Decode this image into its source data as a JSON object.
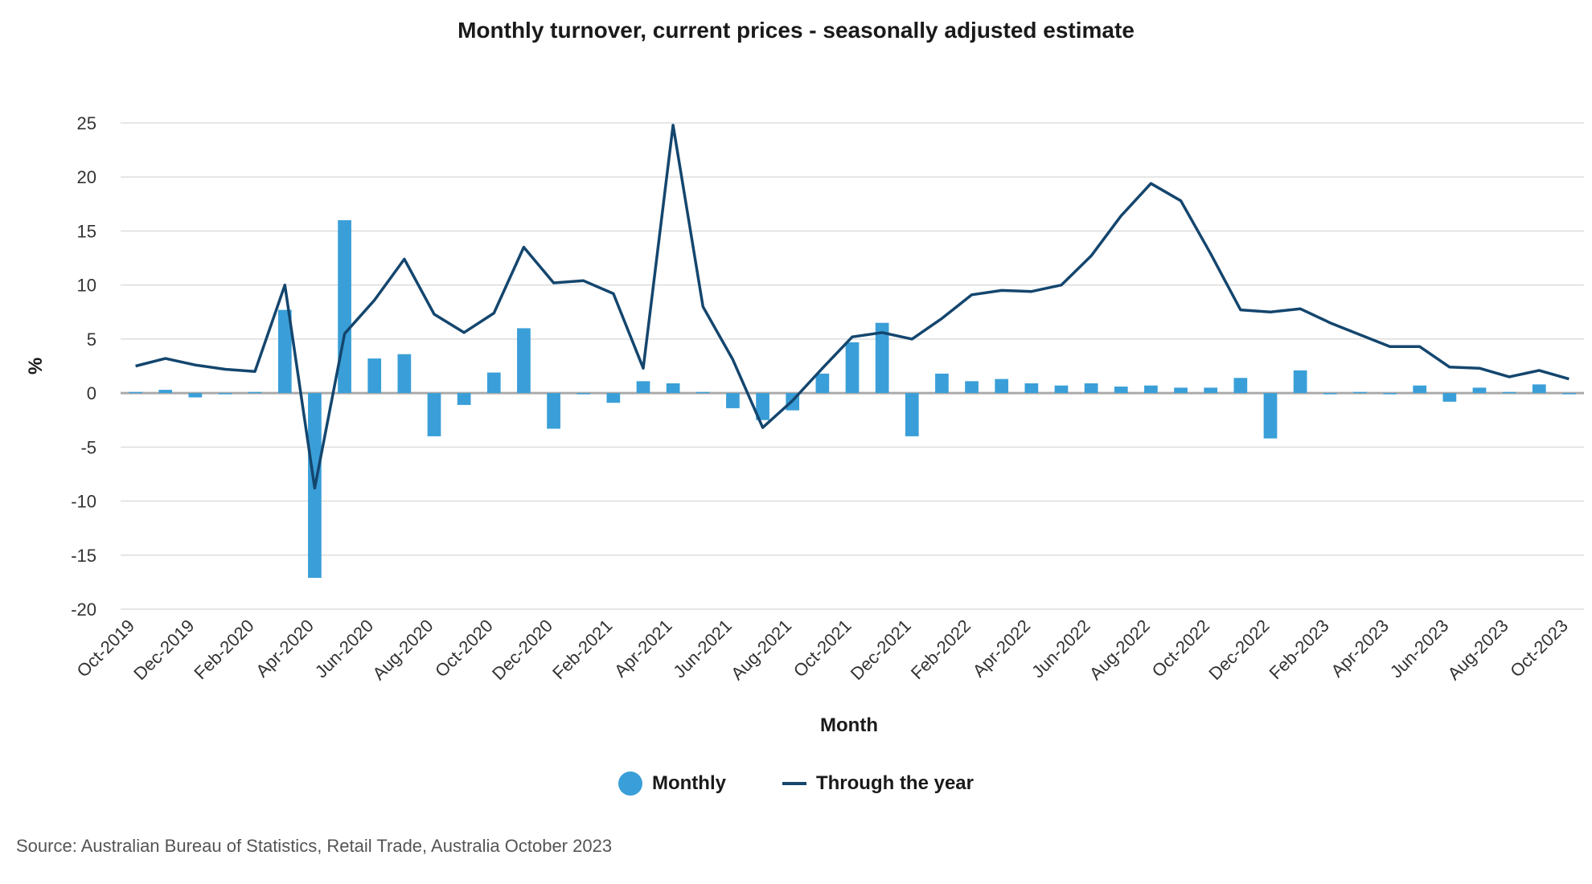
{
  "chart_data": {
    "type": "bar",
    "title": "Monthly turnover, current prices - seasonally adjusted estimate",
    "xlabel": "Month",
    "ylabel": "%",
    "ylim": [
      -20,
      25
    ],
    "yticks": [
      25,
      20,
      15,
      10,
      5,
      0,
      -5,
      -10,
      -15,
      -20
    ],
    "grid": true,
    "legend_position": "bottom",
    "categories": [
      "Oct-2019",
      "Nov-2019",
      "Dec-2019",
      "Jan-2020",
      "Feb-2020",
      "Mar-2020",
      "Apr-2020",
      "May-2020",
      "Jun-2020",
      "Jul-2020",
      "Aug-2020",
      "Sep-2020",
      "Oct-2020",
      "Nov-2020",
      "Dec-2020",
      "Jan-2021",
      "Feb-2021",
      "Mar-2021",
      "Apr-2021",
      "May-2021",
      "Jun-2021",
      "Jul-2021",
      "Aug-2021",
      "Sep-2021",
      "Oct-2021",
      "Nov-2021",
      "Dec-2021",
      "Jan-2022",
      "Feb-2022",
      "Mar-2022",
      "Apr-2022",
      "May-2022",
      "Jun-2022",
      "Jul-2022",
      "Aug-2022",
      "Sep-2022",
      "Oct-2022",
      "Nov-2022",
      "Dec-2022",
      "Jan-2023",
      "Feb-2023",
      "Mar-2023",
      "Apr-2023",
      "May-2023",
      "Jun-2023",
      "Jul-2023",
      "Aug-2023",
      "Sep-2023",
      "Oct-2023"
    ],
    "tick_labels": [
      "Oct-2019",
      "Dec-2019",
      "Feb-2020",
      "Apr-2020",
      "Jun-2020",
      "Aug-2020",
      "Oct-2020",
      "Dec-2020",
      "Feb-2021",
      "Apr-2021",
      "Jun-2021",
      "Aug-2021",
      "Oct-2021",
      "Dec-2021",
      "Feb-2022",
      "Apr-2022",
      "Jun-2022",
      "Aug-2022",
      "Oct-2022",
      "Dec-2022",
      "Feb-2023",
      "Apr-2023",
      "Jun-2023",
      "Aug-2023",
      "Oct-2023"
    ],
    "series": [
      {
        "name": "Monthly",
        "type": "bar",
        "color": "#3a9fd8",
        "values": [
          0.1,
          0.3,
          -0.4,
          0.0,
          0.1,
          7.7,
          -17.1,
          16.0,
          3.2,
          3.6,
          -4.0,
          -1.1,
          1.9,
          6.0,
          -3.3,
          0.0,
          -0.9,
          1.1,
          0.9,
          0.1,
          -1.4,
          -2.5,
          -1.6,
          1.8,
          4.7,
          6.5,
          -4.0,
          1.8,
          1.1,
          1.3,
          0.9,
          0.7,
          0.9,
          0.6,
          0.7,
          0.5,
          0.5,
          1.4,
          -4.2,
          2.1,
          0.0,
          0.1,
          0.0,
          0.7,
          -0.8,
          0.5,
          0.1,
          0.8,
          0.0
        ]
      },
      {
        "name": "Through the year",
        "type": "line",
        "color": "#14466e",
        "values": [
          2.5,
          3.2,
          2.6,
          2.2,
          2.0,
          10.0,
          -8.8,
          5.5,
          8.6,
          12.4,
          7.3,
          5.6,
          7.4,
          13.5,
          10.2,
          10.4,
          9.2,
          2.3,
          24.8,
          8.0,
          3.1,
          -3.2,
          -0.7,
          2.3,
          5.2,
          5.6,
          5.0,
          6.9,
          9.1,
          9.5,
          9.4,
          10.0,
          12.7,
          16.4,
          19.4,
          17.8,
          12.9,
          7.7,
          7.5,
          7.8,
          6.5,
          5.4,
          4.3,
          4.3,
          2.4,
          2.3,
          1.5,
          2.1,
          1.3
        ]
      }
    ]
  },
  "legend": {
    "monthly_label": "Monthly",
    "monthly_color": "#3a9fd8",
    "trend_label": "Through the year",
    "trend_color": "#14466e"
  },
  "source": "Source: Australian Bureau of Statistics, Retail Trade, Australia October 2023"
}
